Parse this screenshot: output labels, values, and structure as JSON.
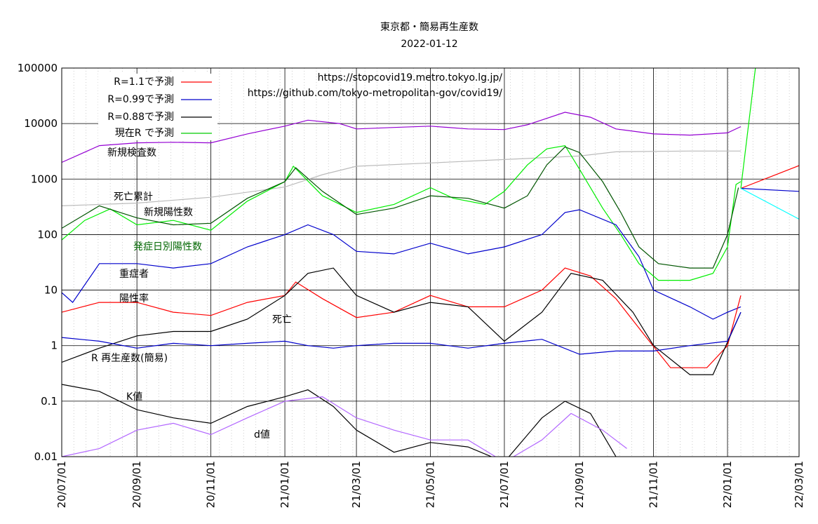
{
  "chart_data": {
    "type": "line",
    "title": "東京都・簡易再生産数",
    "subtitle": "2022-01-12",
    "sources": [
      "https://stopcovid19.metro.tokyo.lg.jp/",
      "https://github.com/tokyo-metropolitan-gov/covid19/"
    ],
    "y_scale": "log",
    "ylim": [
      0.01,
      100000
    ],
    "y_ticks": [
      "0.01",
      "0.1",
      "1",
      "10",
      "100",
      "1000",
      "10000",
      "100000"
    ],
    "xlim": [
      "2020-07-01",
      "2022-03-01"
    ],
    "x_ticks": [
      "20/07/01",
      "20/09/01",
      "20/11/01",
      "21/01/01",
      "21/03/01",
      "21/05/01",
      "21/07/01",
      "21/09/01",
      "21/11/01",
      "22/01/01",
      "22/03/01"
    ],
    "grid": true,
    "legend_position": "top-left",
    "legend": [
      {
        "label": "R=1.1で予測",
        "color": "#ff0000"
      },
      {
        "label": "R=0.99で予測",
        "color": "#0000cc"
      },
      {
        "label": "R=0.88で予測",
        "color": "#000000"
      },
      {
        "label": "現在R で予測",
        "color": "#00cc00"
      }
    ],
    "series_labels": {
      "tests": "新規検査数",
      "cum_deaths": "死亡累計",
      "new_positive": "新規陽性数",
      "onset_positive": "発症日別陽性数",
      "severe": "重症者",
      "positive_rate": "陽性率",
      "deaths": "死亡",
      "r": "R 再生産数(簡易)",
      "k": "K値",
      "d": "d値"
    },
    "series": [
      {
        "key": "tests",
        "color": "#9400d3",
        "x": [
          "2020-07-01",
          "2020-08-01",
          "2020-09-01",
          "2020-10-01",
          "2020-11-01",
          "2020-12-01",
          "2021-01-01",
          "2021-01-20",
          "2021-02-15",
          "2021-03-01",
          "2021-04-01",
          "2021-05-01",
          "2021-06-01",
          "2021-07-01",
          "2021-07-20",
          "2021-08-20",
          "2021-09-10",
          "2021-10-01",
          "2021-11-01",
          "2021-12-01",
          "2022-01-01",
          "2022-01-12"
        ],
        "values": [
          2000,
          4000,
          4500,
          4600,
          4500,
          6500,
          9000,
          11500,
          10000,
          8000,
          8500,
          9000,
          8000,
          7800,
          9500,
          16000,
          13000,
          8000,
          6500,
          6200,
          6800,
          8800
        ]
      },
      {
        "key": "cum_deaths",
        "color": "#bbbbbb",
        "x": [
          "2020-07-01",
          "2020-09-01",
          "2020-11-01",
          "2021-01-01",
          "2021-02-01",
          "2021-03-01",
          "2021-05-01",
          "2021-07-01",
          "2021-09-01",
          "2021-10-01",
          "2021-12-01",
          "2022-01-12"
        ],
        "values": [
          330,
          370,
          470,
          720,
          1200,
          1700,
          1950,
          2250,
          2600,
          3100,
          3200,
          3200
        ]
      },
      {
        "key": "new_positive",
        "color": "#00ee00",
        "x": [
          "2020-07-01",
          "2020-07-20",
          "2020-08-10",
          "2020-09-01",
          "2020-10-01",
          "2020-11-01",
          "2020-12-01",
          "2021-01-01",
          "2021-01-08",
          "2021-02-01",
          "2021-03-01",
          "2021-04-01",
          "2021-05-01",
          "2021-05-20",
          "2021-06-15",
          "2021-07-01",
          "2021-07-20",
          "2021-08-05",
          "2021-08-20",
          "2021-09-01",
          "2021-09-20",
          "2021-10-05",
          "2021-10-20",
          "2021-11-05",
          "2021-12-01",
          "2021-12-20",
          "2022-01-01",
          "2022-01-08",
          "2022-01-12"
        ],
        "values": [
          80,
          180,
          290,
          150,
          180,
          120,
          400,
          900,
          1700,
          500,
          250,
          350,
          700,
          450,
          350,
          600,
          1800,
          3500,
          4000,
          1500,
          300,
          100,
          30,
          15,
          15,
          20,
          60,
          800,
          900
        ]
      },
      {
        "key": "onset_positive",
        "color": "#005500",
        "x": [
          "2020-07-01",
          "2020-08-01",
          "2020-09-01",
          "2020-10-01",
          "2020-11-01",
          "2020-12-01",
          "2021-01-01",
          "2021-01-10",
          "2021-02-01",
          "2021-03-01",
          "2021-04-01",
          "2021-05-01",
          "2021-06-01",
          "2021-07-01",
          "2021-07-20",
          "2021-08-05",
          "2021-08-20",
          "2021-09-01",
          "2021-09-20",
          "2021-10-05",
          "2021-10-20",
          "2021-11-05",
          "2021-12-01",
          "2021-12-20",
          "2022-01-01",
          "2022-01-10"
        ],
        "values": [
          130,
          330,
          200,
          150,
          160,
          450,
          900,
          1600,
          600,
          230,
          300,
          500,
          450,
          300,
          500,
          1800,
          3800,
          3000,
          900,
          250,
          60,
          30,
          25,
          25,
          100,
          700
        ]
      },
      {
        "key": "severe",
        "color": "#0000cc",
        "x": [
          "2020-07-01",
          "2020-07-10",
          "2020-08-01",
          "2020-09-01",
          "2020-10-01",
          "2020-11-01",
          "2020-12-01",
          "2021-01-01",
          "2021-01-20",
          "2021-02-10",
          "2021-03-01",
          "2021-04-01",
          "2021-05-01",
          "2021-06-01",
          "2021-07-01",
          "2021-08-01",
          "2021-08-20",
          "2021-09-01",
          "2021-10-01",
          "2021-10-20",
          "2021-11-01",
          "2021-12-01",
          "2021-12-20",
          "2022-01-01",
          "2022-01-12"
        ],
        "values": [
          9,
          6,
          30,
          30,
          25,
          30,
          60,
          100,
          150,
          100,
          50,
          45,
          70,
          45,
          60,
          100,
          250,
          280,
          150,
          40,
          10,
          5,
          3,
          4,
          5
        ]
      },
      {
        "key": "positive_rate",
        "color": "#ff0000",
        "x": [
          "2020-07-01",
          "2020-08-01",
          "2020-09-01",
          "2020-10-01",
          "2020-11-01",
          "2020-12-01",
          "2021-01-01",
          "2021-01-10",
          "2021-02-01",
          "2021-03-01",
          "2021-04-01",
          "2021-05-01",
          "2021-06-01",
          "2021-07-01",
          "2021-08-01",
          "2021-08-20",
          "2021-09-10",
          "2021-10-01",
          "2021-10-25",
          "2021-11-15",
          "2021-12-15",
          "2022-01-01",
          "2022-01-12"
        ],
        "values": [
          4,
          6,
          6,
          4,
          3.5,
          6,
          8,
          14,
          7,
          3.2,
          4,
          8,
          5,
          5,
          10,
          25,
          18,
          7,
          1.5,
          0.4,
          0.4,
          1,
          8
        ]
      },
      {
        "key": "deaths",
        "color": "#000000",
        "x": [
          "2020-07-01",
          "2020-08-01",
          "2020-09-01",
          "2020-10-01",
          "2020-11-01",
          "2020-12-01",
          "2021-01-01",
          "2021-01-20",
          "2021-02-10",
          "2021-03-01",
          "2021-04-01",
          "2021-05-01",
          "2021-06-01",
          "2021-07-01",
          "2021-08-01",
          "2021-08-25",
          "2021-09-20",
          "2021-10-15",
          "2021-11-01",
          "2021-12-01",
          "2021-12-20",
          "2022-01-12"
        ],
        "values": [
          0.5,
          0.9,
          1.5,
          1.8,
          1.8,
          3,
          8,
          20,
          25,
          8,
          4,
          6,
          5,
          1.2,
          4,
          20,
          15,
          4,
          1,
          0.3,
          0.3,
          4
        ]
      },
      {
        "key": "r",
        "color": "#0000cc",
        "x": [
          "2020-07-01",
          "2020-08-01",
          "2020-09-01",
          "2020-10-01",
          "2020-11-01",
          "2020-12-01",
          "2021-01-01",
          "2021-01-20",
          "2021-02-10",
          "2021-03-01",
          "2021-04-01",
          "2021-05-01",
          "2021-06-01",
          "2021-07-01",
          "2021-08-01",
          "2021-09-01",
          "2021-10-01",
          "2021-11-01",
          "2021-12-01",
          "2022-01-01",
          "2022-01-12"
        ],
        "values": [
          1.4,
          1.2,
          0.9,
          1.1,
          1.0,
          1.1,
          1.2,
          1.0,
          0.9,
          1.0,
          1.1,
          1.1,
          0.9,
          1.1,
          1.3,
          0.7,
          0.8,
          0.8,
          1.0,
          1.2,
          4
        ]
      },
      {
        "key": "k",
        "color": "#000000",
        "x": [
          "2020-07-01",
          "2020-08-01",
          "2020-09-01",
          "2020-10-01",
          "2020-11-01",
          "2020-12-01",
          "2021-01-01",
          "2021-01-20",
          "2021-02-10",
          "2021-03-01",
          "2021-04-01",
          "2021-05-01",
          "2021-06-01",
          "2021-07-01",
          "2021-08-01",
          "2021-08-20",
          "2021-09-10",
          "2021-10-01"
        ],
        "values": [
          0.2,
          0.15,
          0.07,
          0.05,
          0.04,
          0.08,
          0.12,
          0.16,
          0.08,
          0.03,
          0.012,
          0.018,
          0.015,
          0.008,
          0.05,
          0.1,
          0.06,
          0.01
        ]
      },
      {
        "key": "d",
        "color": "#b266ff",
        "x": [
          "2020-07-01",
          "2020-08-01",
          "2020-09-01",
          "2020-10-01",
          "2020-11-01",
          "2020-12-01",
          "2021-01-01",
          "2021-02-01",
          "2021-03-01",
          "2021-04-01",
          "2021-05-01",
          "2021-06-01",
          "2021-07-01",
          "2021-08-01",
          "2021-08-25",
          "2021-09-20",
          "2021-10-10"
        ],
        "values": [
          0.01,
          0.014,
          0.03,
          0.04,
          0.025,
          0.05,
          0.1,
          0.12,
          0.05,
          0.03,
          0.02,
          0.02,
          0.008,
          0.02,
          0.06,
          0.03,
          0.014
        ]
      }
    ],
    "predictions": [
      {
        "label": "R=1.1で予測",
        "color": "#ff0000",
        "x": [
          "2022-01-12",
          "2022-03-01"
        ],
        "values": [
          680,
          1750
        ]
      },
      {
        "label": "R=0.99で予測",
        "color": "#0000cc",
        "x": [
          "2022-01-12",
          "2022-03-01"
        ],
        "values": [
          680,
          600
        ]
      },
      {
        "label": "R=0.88で予測",
        "color": "#00ffff",
        "x": [
          "2022-01-12",
          "2022-03-01"
        ],
        "values": [
          680,
          190
        ]
      },
      {
        "label": "現在R で予測",
        "color": "#00ee00",
        "x": [
          "2022-01-12",
          "2022-01-24"
        ],
        "values": [
          680,
          100000
        ]
      }
    ]
  }
}
